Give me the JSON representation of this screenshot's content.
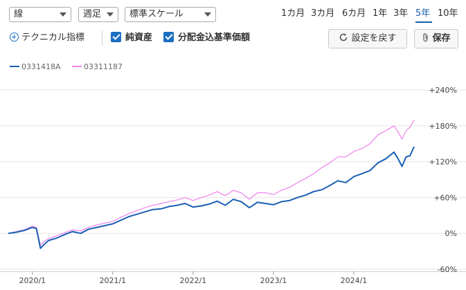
{
  "toolbar": {
    "chart_type": "線",
    "interval": "週足",
    "scale": "標準スケール",
    "ranges": [
      "1カ月",
      "3カ月",
      "6カ月",
      "1年",
      "3年",
      "5年",
      "10年"
    ],
    "active_range": "5年"
  },
  "options": {
    "technical_label": "テクニカル指標",
    "net_assets_label": "純資産",
    "nav_label": "分配金込基準価額",
    "reset_label": "設定を戻す",
    "save_label": "保存"
  },
  "colors": {
    "series_1": "#1a5fb4",
    "series_2": "#ee82ee",
    "accent": "#1a6fc0"
  },
  "chart_data": {
    "type": "line",
    "legend_position": "top-left",
    "grid": true,
    "y_axis": {
      "position": "right",
      "range": [
        -60,
        240
      ],
      "ticks": [
        "+240%",
        "+180%",
        "+120%",
        "+60%",
        "0%",
        "-60%"
      ],
      "tick_values": [
        240,
        180,
        120,
        60,
        0,
        -60
      ]
    },
    "x_ticks": [
      "2020/1",
      "2021/1",
      "2022/1",
      "2023/1",
      "2024/1"
    ],
    "x_tick_values": [
      2020.0,
      2021.0,
      2022.0,
      2023.0,
      2024.0
    ],
    "x_range": [
      2019.7,
      2024.75
    ],
    "series": [
      {
        "name": "0331418A",
        "x": [
          2019.7,
          2019.8,
          2019.9,
          2020.0,
          2020.05,
          2020.1,
          2020.15,
          2020.2,
          2020.3,
          2020.4,
          2020.5,
          2020.6,
          2020.7,
          2020.8,
          2020.9,
          2021.0,
          2021.1,
          2021.2,
          2021.3,
          2021.4,
          2021.5,
          2021.6,
          2021.7,
          2021.8,
          2021.9,
          2022.0,
          2022.1,
          2022.2,
          2022.3,
          2022.4,
          2022.5,
          2022.6,
          2022.7,
          2022.8,
          2022.9,
          2023.0,
          2023.1,
          2023.2,
          2023.3,
          2023.4,
          2023.5,
          2023.6,
          2023.7,
          2023.8,
          2023.9,
          2024.0,
          2024.1,
          2024.2,
          2024.3,
          2024.4,
          2024.5,
          2024.55,
          2024.6,
          2024.65,
          2024.7,
          2024.75
        ],
        "values": [
          0,
          2,
          5,
          10,
          8,
          -25,
          -18,
          -12,
          -8,
          -2,
          3,
          0,
          7,
          10,
          13,
          16,
          22,
          28,
          32,
          36,
          40,
          41,
          45,
          47,
          50,
          44,
          46,
          49,
          54,
          47,
          57,
          53,
          43,
          52,
          50,
          48,
          53,
          55,
          60,
          64,
          70,
          73,
          80,
          88,
          85,
          95,
          100,
          105,
          118,
          125,
          136,
          125,
          112,
          128,
          130,
          145
        ]
      },
      {
        "name": "03311187",
        "x": [
          2019.7,
          2019.8,
          2019.9,
          2020.0,
          2020.05,
          2020.1,
          2020.15,
          2020.2,
          2020.3,
          2020.4,
          2020.5,
          2020.6,
          2020.7,
          2020.8,
          2020.9,
          2021.0,
          2021.1,
          2021.2,
          2021.3,
          2021.4,
          2021.5,
          2021.6,
          2021.7,
          2021.8,
          2021.9,
          2022.0,
          2022.1,
          2022.2,
          2022.3,
          2022.4,
          2022.5,
          2022.6,
          2022.7,
          2022.8,
          2022.9,
          2023.0,
          2023.1,
          2023.2,
          2023.3,
          2023.4,
          2023.5,
          2023.6,
          2023.7,
          2023.8,
          2023.9,
          2024.0,
          2024.1,
          2024.2,
          2024.3,
          2024.4,
          2024.5,
          2024.55,
          2024.6,
          2024.65,
          2024.7,
          2024.75
        ],
        "values": [
          0,
          3,
          6,
          12,
          10,
          -20,
          -13,
          -9,
          -4,
          1,
          6,
          4,
          10,
          14,
          17,
          20,
          27,
          33,
          38,
          43,
          47,
          50,
          53,
          56,
          60,
          55,
          60,
          64,
          70,
          63,
          72,
          68,
          57,
          68,
          68,
          65,
          72,
          77,
          85,
          92,
          100,
          110,
          118,
          128,
          128,
          137,
          142,
          150,
          165,
          172,
          180,
          170,
          158,
          172,
          178,
          190
        ]
      }
    ]
  }
}
